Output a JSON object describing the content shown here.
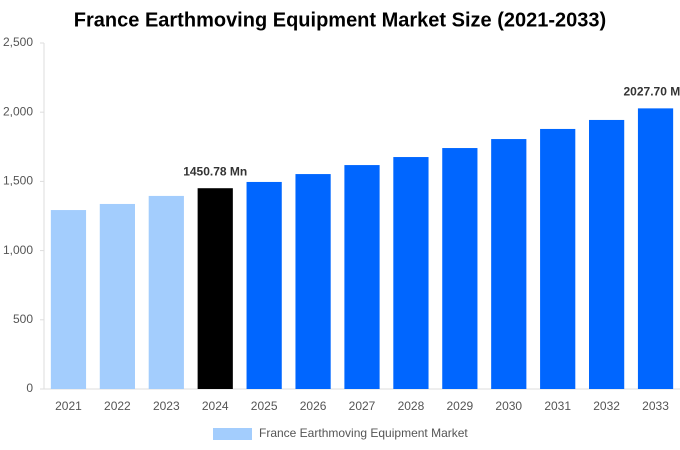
{
  "chart_data": {
    "type": "bar",
    "title": "France Earthmoving Equipment Market Size (2021-2033)",
    "categories": [
      "2021",
      "2022",
      "2023",
      "2024",
      "2025",
      "2026",
      "2027",
      "2028",
      "2029",
      "2030",
      "2031",
      "2032",
      "2033"
    ],
    "series": [
      {
        "name": "France Earthmoving Equipment Market",
        "color": "#a3cdfd",
        "values": [
          1293,
          1337,
          1395,
          1450.78,
          1496,
          1553,
          1618,
          1676,
          1741,
          1806,
          1879,
          1944,
          2027.7
        ],
        "value_labels": [
          null,
          null,
          null,
          "1450.78 Mn",
          null,
          null,
          null,
          null,
          null,
          null,
          null,
          null,
          "2027.70 Mn"
        ],
        "bar_colors": [
          "#a3cdfd",
          "#a3cdfd",
          "#a3cdfd",
          "#000000",
          "#0066ff",
          "#0066ff",
          "#0066ff",
          "#0066ff",
          "#0066ff",
          "#0066ff",
          "#0066ff",
          "#0066ff",
          "#0066ff"
        ]
      }
    ],
    "ylim": [
      0,
      2500
    ],
    "yticks": [
      0,
      500,
      {
        "value": 1000,
        "label": "1,000"
      },
      {
        "value": 1500,
        "label": "1,500"
      },
      {
        "value": 2000,
        "label": "2,000"
      },
      {
        "value": 2500,
        "label": "2,500"
      }
    ],
    "grid": false
  }
}
